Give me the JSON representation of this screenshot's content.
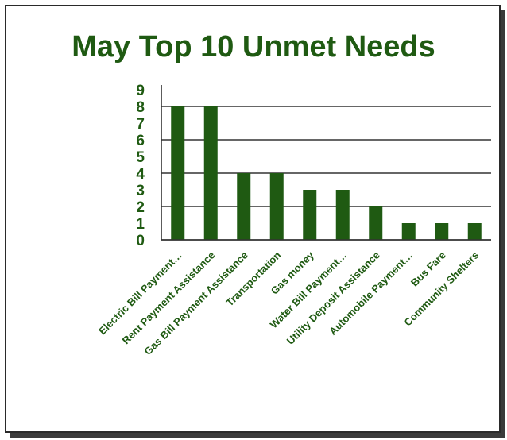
{
  "chart_data": {
    "type": "bar",
    "title": "May Top 10 Unmet Needs",
    "categories": [
      "Electric Bill Payment…",
      "Rent Payment Assistance",
      "Gas Bill Payment Assistance",
      "Transportation",
      "Gas money",
      "Water Bill Payment…",
      "Utility Deposit Assistance",
      "Automobile Payment…",
      "Bus Fare",
      "Community Shelters"
    ],
    "values": [
      8,
      8,
      4,
      4,
      3,
      3,
      2,
      1,
      1,
      1
    ],
    "yticks": [
      "0",
      "1",
      "2",
      "3",
      "4",
      "5",
      "6",
      "7",
      "8",
      "9"
    ],
    "ylim": [
      0,
      9
    ],
    "grid": true,
    "bar_color": "#1f5a12",
    "text_color": "#1f5a12"
  }
}
